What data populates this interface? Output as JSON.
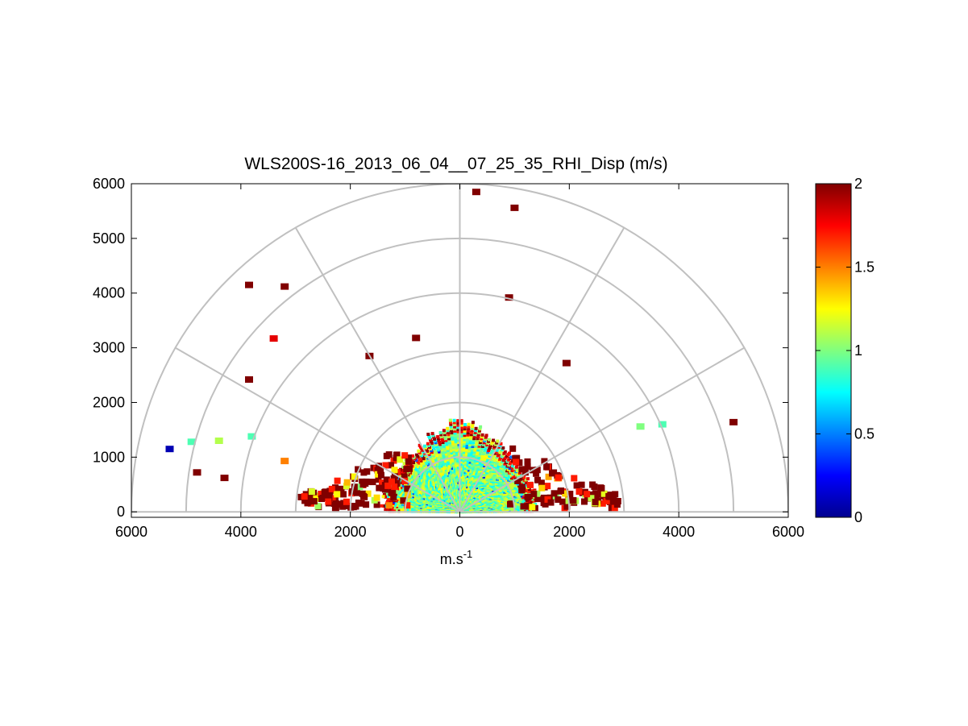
{
  "chart_data": {
    "type": "heatmap",
    "subtype": "polar-rhi-scan",
    "title": "WLS200S-16_2013_06_04__07_25_35_RHI_Disp (m/s)",
    "xlabel_base": "m.s",
    "xlabel_sup": "-1",
    "ylabel": "",
    "xlim": [
      -6000,
      6000
    ],
    "ylim": [
      -100,
      6000
    ],
    "x_ticks": [
      -6000,
      -4000,
      -2000,
      0,
      2000,
      4000,
      6000
    ],
    "x_tick_labels": [
      "6000",
      "4000",
      "2000",
      "0",
      "2000",
      "4000",
      "6000"
    ],
    "y_ticks": [
      0,
      1000,
      2000,
      3000,
      4000,
      5000,
      6000
    ],
    "y_tick_labels": [
      "0",
      "1000",
      "2000",
      "3000",
      "4000",
      "5000",
      "6000"
    ],
    "polar_grid_radii": [
      1000,
      2000,
      3000,
      4000,
      5000,
      6000
    ],
    "polar_grid_angles_deg": [
      0,
      30,
      60,
      90,
      120,
      150,
      180
    ],
    "colorbar": {
      "colormap": "jet",
      "range": [
        0,
        2
      ],
      "ticks": [
        0,
        0.5,
        1,
        1.5,
        2
      ],
      "tick_labels": [
        "0",
        "0.5",
        "1",
        "1.5",
        "2"
      ]
    },
    "dense_core": {
      "description_range_m": 1700,
      "typical_value": 1.0,
      "edge_value": 2.0
    },
    "sample_points": [
      {
        "x": 300,
        "y": 5850,
        "v": 2.0
      },
      {
        "x": 1000,
        "y": 5560,
        "v": 2.0
      },
      {
        "x": -3850,
        "y": 4150,
        "v": 2.0
      },
      {
        "x": -3200,
        "y": 4120,
        "v": 2.0
      },
      {
        "x": 900,
        "y": 3920,
        "v": 2.0
      },
      {
        "x": -3400,
        "y": 3170,
        "v": 1.8
      },
      {
        "x": -800,
        "y": 3180,
        "v": 2.0
      },
      {
        "x": -1650,
        "y": 2850,
        "v": 2.0
      },
      {
        "x": 1950,
        "y": 2720,
        "v": 2.0
      },
      {
        "x": -3850,
        "y": 2420,
        "v": 2.0
      },
      {
        "x": 5000,
        "y": 1640,
        "v": 2.0
      },
      {
        "x": -5300,
        "y": 1150,
        "v": 0.1
      },
      {
        "x": -4900,
        "y": 1280,
        "v": 0.9
      },
      {
        "x": -4400,
        "y": 1300,
        "v": 1.1
      },
      {
        "x": -3800,
        "y": 1380,
        "v": 0.9
      },
      {
        "x": 3700,
        "y": 1600,
        "v": 0.9
      },
      {
        "x": 3300,
        "y": 1560,
        "v": 1.0
      },
      {
        "x": -3200,
        "y": 930,
        "v": 1.5
      },
      {
        "x": -4800,
        "y": 720,
        "v": 2.0
      },
      {
        "x": -4300,
        "y": 620,
        "v": 2.0
      }
    ]
  }
}
